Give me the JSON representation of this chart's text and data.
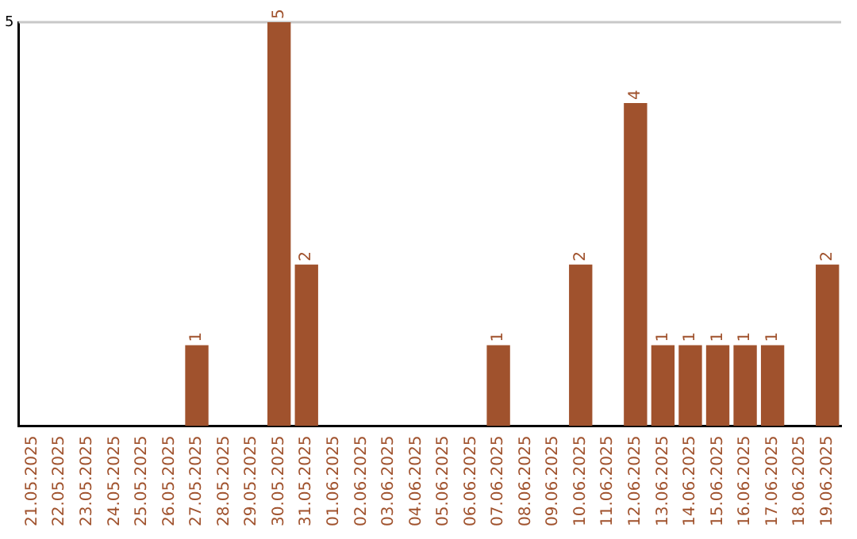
{
  "chart_data": {
    "type": "bar",
    "categories": [
      "21.05.2025",
      "22.05.2025",
      "23.05.2025",
      "24.05.2025",
      "25.05.2025",
      "26.05.2025",
      "27.05.2025",
      "28.05.2025",
      "29.05.2025",
      "30.05.2025",
      "31.05.2025",
      "01.06.2025",
      "02.06.2025",
      "03.06.2025",
      "04.06.2025",
      "05.06.2025",
      "06.06.2025",
      "07.06.2025",
      "08.06.2025",
      "09.06.2025",
      "10.06.2025",
      "11.06.2025",
      "12.06.2025",
      "13.06.2025",
      "14.06.2025",
      "15.06.2025",
      "16.06.2025",
      "17.06.2025",
      "18.06.2025",
      "19.06.2025"
    ],
    "values": [
      0,
      0,
      0,
      0,
      0,
      0,
      1,
      0,
      0,
      5,
      2,
      0,
      0,
      0,
      0,
      0,
      0,
      1,
      0,
      0,
      2,
      0,
      4,
      1,
      1,
      1,
      1,
      1,
      0,
      2
    ],
    "value_labels": [
      null,
      null,
      null,
      null,
      null,
      null,
      "1",
      null,
      null,
      "5",
      "2",
      null,
      null,
      null,
      null,
      null,
      null,
      "1",
      null,
      null,
      "2",
      null,
      "4",
      "1",
      "1",
      "1",
      "1",
      "1",
      null,
      "2"
    ],
    "color": "#a0522d",
    "ylim": [
      0,
      5
    ],
    "yticks": [
      5
    ],
    "ref_lines": [
      {
        "axis": "y",
        "value": 5,
        "color": "#c8c8c8"
      }
    ],
    "legend": false
  }
}
